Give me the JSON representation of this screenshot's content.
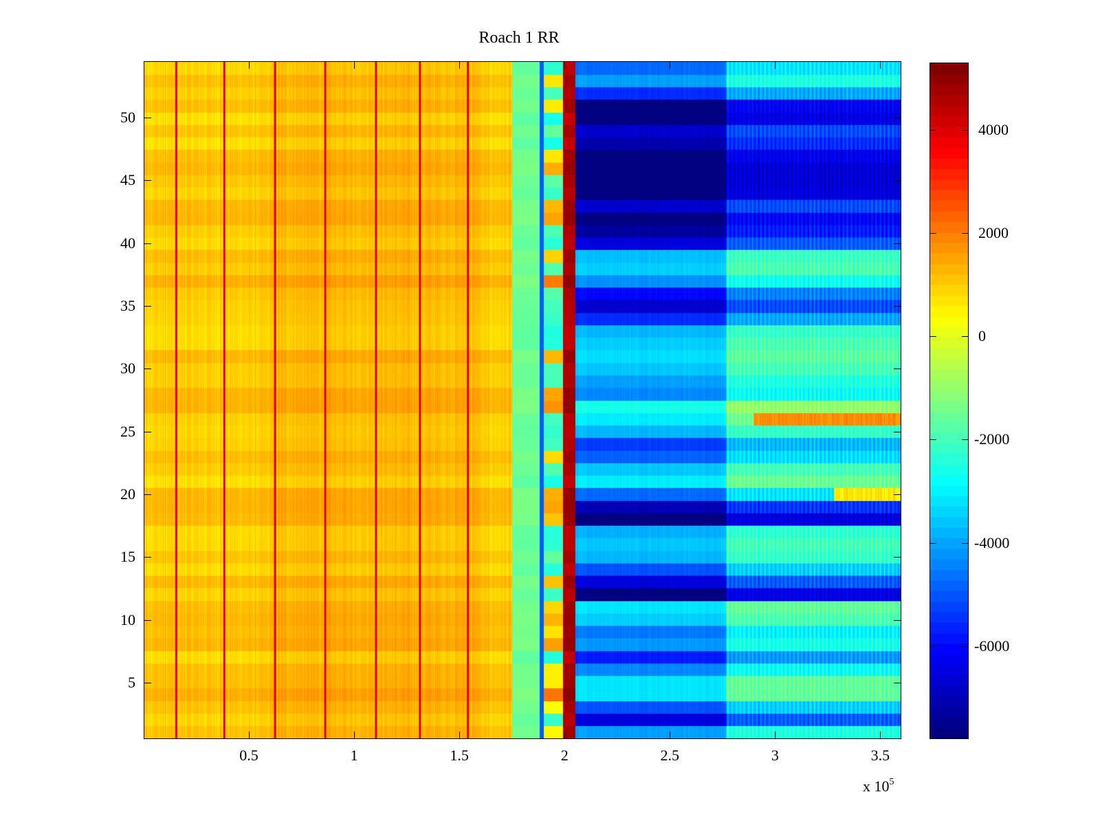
{
  "chart_data": {
    "type": "heatmap",
    "title": "Roach 1 RR",
    "xlabel": "",
    "ylabel": "",
    "x_multiplier_label": "x 10",
    "x_multiplier_exp": "5",
    "xlim": [
      0,
      3.6
    ],
    "ylim": [
      0.5,
      54.5
    ],
    "x_ticks": [
      0.5,
      1,
      1.5,
      2,
      2.5,
      3,
      3.5
    ],
    "x_tick_labels": [
      "0.5",
      "1",
      "1.5",
      "2",
      "2.5",
      "3",
      "3.5"
    ],
    "y_ticks": [
      5,
      10,
      15,
      20,
      25,
      30,
      35,
      40,
      45,
      50
    ],
    "y_tick_labels": [
      "5",
      "10",
      "15",
      "20",
      "25",
      "30",
      "35",
      "40",
      "45",
      "50"
    ],
    "colormap": "jet",
    "clim": [
      -7800,
      5300
    ],
    "colorbar_ticks": [
      4000,
      2000,
      0,
      -2000,
      -4000,
      -6000
    ],
    "colorbar_tick_labels": [
      "4000",
      "2000",
      "0",
      "-2000",
      "-4000",
      "-6000"
    ],
    "rows": 54,
    "regions": [
      {
        "name": "left band",
        "x_range": [
          0,
          1.75
        ],
        "approx_value": 1000
      },
      {
        "name": "transition",
        "x_range": [
          1.75,
          1.88
        ],
        "approx_value": -1500
      },
      {
        "name": "blue line",
        "x_range": [
          1.88,
          1.9
        ],
        "approx_value": -5000
      },
      {
        "name": "peak column",
        "x_range": [
          1.99,
          2.05
        ],
        "approx_value": 4500
      },
      {
        "name": "right band A",
        "x_range": [
          2.05,
          2.77
        ],
        "approx_value": -4500
      },
      {
        "name": "right band B",
        "x_range": [
          2.77,
          3.6
        ],
        "approx_value": -3500
      }
    ],
    "vertical_red_lines_x": [
      0.15,
      0.38,
      0.62,
      0.86,
      1.1,
      1.31,
      1.54
    ],
    "row_profile_right": [
      -3500,
      -6000,
      -4500,
      -2600,
      -2600,
      -3800,
      -5200,
      -3600,
      -4000,
      -2900,
      -2600,
      -7500,
      -6000,
      -4500,
      -3200,
      -3000,
      -3300,
      -7600,
      -6500,
      -4200,
      -2500,
      -3000,
      -4300,
      -4800,
      -3200,
      -2500,
      -2000,
      -3800,
      -3500,
      -3000,
      -2700,
      -2900,
      -3200,
      -5000,
      -6200,
      -5500,
      -3700,
      -2900,
      -3100,
      -6000,
      -6800,
      -7200,
      -6200,
      -7600,
      -7700,
      -7700,
      -7400,
      -6600,
      -6200,
      -7500,
      -7300,
      -5000,
      -3500,
      -4200
    ]
  }
}
